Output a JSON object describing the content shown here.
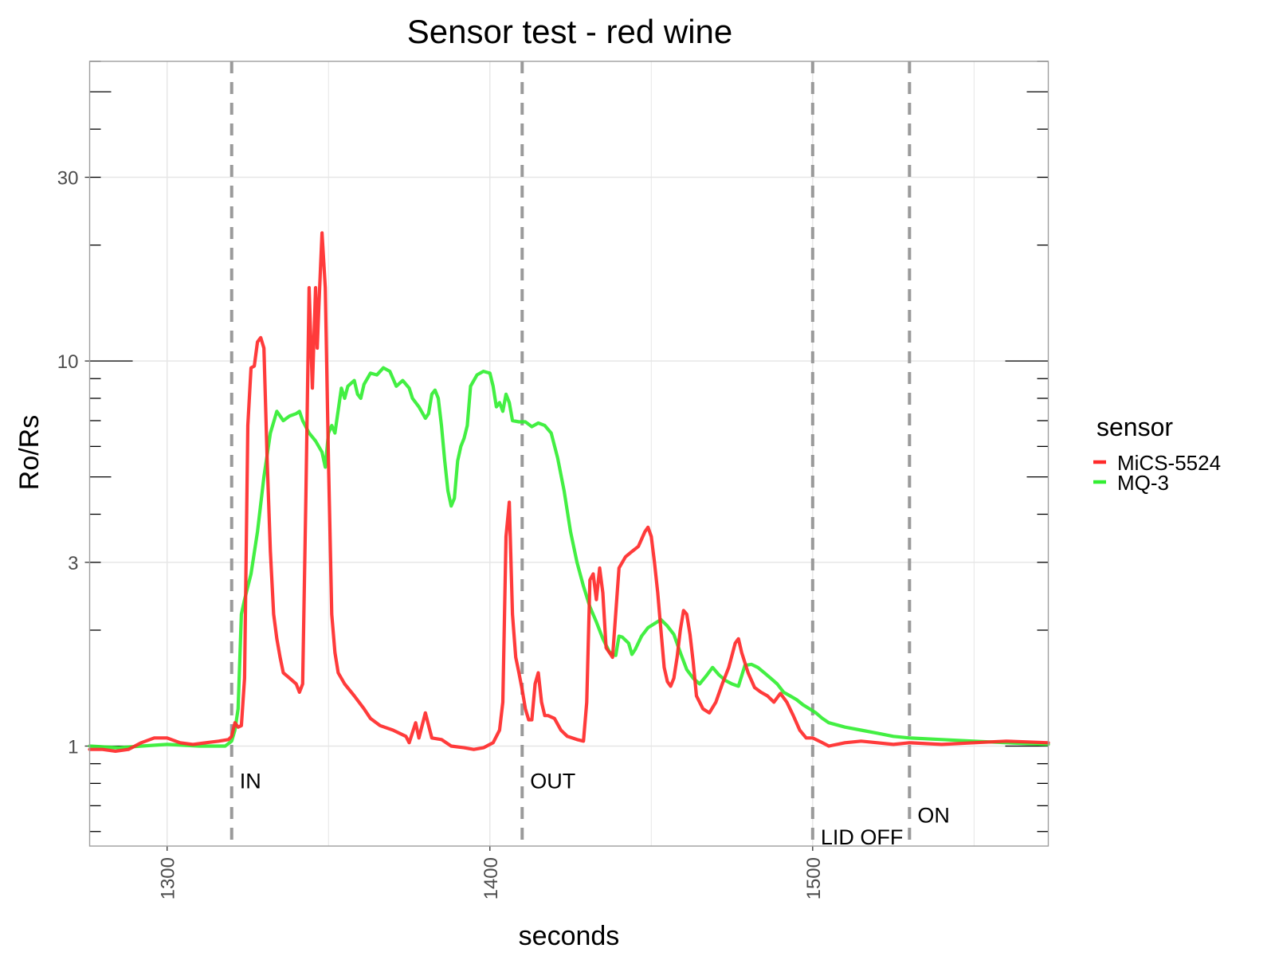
{
  "chart_data": {
    "type": "line",
    "title": "Sensor test - red wine",
    "xlabel": "seconds",
    "ylabel": "Ro/Rs",
    "xlim": [
      1276,
      1573
    ],
    "ylim": [
      0.55,
      60
    ],
    "y_scale": "log10",
    "x_ticks": [
      1300,
      1400,
      1500
    ],
    "x_tick_labels": [
      "1300",
      "1400",
      "1500"
    ],
    "y_ticks": [
      1,
      3,
      10,
      30
    ],
    "y_tick_labels": [
      "1",
      "3",
      "10",
      "30"
    ],
    "grid": true,
    "legend": {
      "title": "sensor",
      "position": "right"
    },
    "vlines": [
      {
        "x": 1320,
        "label": "IN",
        "label_y": 0.81
      },
      {
        "x": 1410,
        "label": "OUT",
        "label_y": 0.81
      },
      {
        "x": 1500,
        "label": "LID OFF",
        "label_y": 0.58
      },
      {
        "x": 1530,
        "label": "ON",
        "label_y": 0.66
      }
    ],
    "series": [
      {
        "name": "MiCS-5524",
        "color": "#ff2a2a",
        "points": [
          [
            1276,
            0.98
          ],
          [
            1280,
            0.98
          ],
          [
            1284,
            0.97
          ],
          [
            1288,
            0.98
          ],
          [
            1292,
            1.02
          ],
          [
            1296,
            1.05
          ],
          [
            1300,
            1.05
          ],
          [
            1304,
            1.02
          ],
          [
            1308,
            1.01
          ],
          [
            1312,
            1.02
          ],
          [
            1316,
            1.03
          ],
          [
            1319,
            1.04
          ],
          [
            1320,
            1.06
          ],
          [
            1321,
            1.15
          ],
          [
            1322,
            1.12
          ],
          [
            1323,
            1.13
          ],
          [
            1324,
            1.5
          ],
          [
            1325,
            6.8
          ],
          [
            1326,
            9.6
          ],
          [
            1327,
            9.7
          ],
          [
            1328,
            11.2
          ],
          [
            1329,
            11.5
          ],
          [
            1330,
            10.8
          ],
          [
            1331,
            5.5
          ],
          [
            1332,
            3.2
          ],
          [
            1333,
            2.2
          ],
          [
            1334,
            1.9
          ],
          [
            1335,
            1.7
          ],
          [
            1336,
            1.55
          ],
          [
            1338,
            1.5
          ],
          [
            1340,
            1.45
          ],
          [
            1341,
            1.38
          ],
          [
            1342,
            1.45
          ],
          [
            1343,
            4.5
          ],
          [
            1344,
            15.5
          ],
          [
            1345,
            8.5
          ],
          [
            1346,
            15.5
          ],
          [
            1346.5,
            10.8
          ],
          [
            1347,
            13.8
          ],
          [
            1348,
            21.5
          ],
          [
            1349,
            15.5
          ],
          [
            1350,
            5.5
          ],
          [
            1351,
            2.2
          ],
          [
            1352,
            1.75
          ],
          [
            1353,
            1.55
          ],
          [
            1355,
            1.45
          ],
          [
            1358,
            1.35
          ],
          [
            1361,
            1.25
          ],
          [
            1363,
            1.18
          ],
          [
            1366,
            1.13
          ],
          [
            1370,
            1.1
          ],
          [
            1374,
            1.06
          ],
          [
            1375,
            1.02
          ],
          [
            1377,
            1.15
          ],
          [
            1378,
            1.05
          ],
          [
            1380,
            1.22
          ],
          [
            1382,
            1.05
          ],
          [
            1385,
            1.04
          ],
          [
            1388,
            1.0
          ],
          [
            1392,
            0.99
          ],
          [
            1395,
            0.98
          ],
          [
            1398,
            0.99
          ],
          [
            1401,
            1.02
          ],
          [
            1403,
            1.1
          ],
          [
            1404,
            1.3
          ],
          [
            1405,
            3.5
          ],
          [
            1406,
            4.3
          ],
          [
            1407,
            2.2
          ],
          [
            1408,
            1.7
          ],
          [
            1409,
            1.55
          ],
          [
            1410,
            1.4
          ],
          [
            1411,
            1.25
          ],
          [
            1412,
            1.17
          ],
          [
            1413,
            1.17
          ],
          [
            1414,
            1.45
          ],
          [
            1415,
            1.55
          ],
          [
            1416,
            1.3
          ],
          [
            1417,
            1.2
          ],
          [
            1418,
            1.2
          ],
          [
            1420,
            1.18
          ],
          [
            1422,
            1.1
          ],
          [
            1424,
            1.06
          ],
          [
            1427,
            1.04
          ],
          [
            1429,
            1.03
          ],
          [
            1430,
            1.3
          ],
          [
            1431,
            2.7
          ],
          [
            1432,
            2.8
          ],
          [
            1433,
            2.4
          ],
          [
            1434,
            2.9
          ],
          [
            1435,
            2.5
          ],
          [
            1436,
            1.8
          ],
          [
            1437,
            1.75
          ],
          [
            1438,
            1.7
          ],
          [
            1440,
            2.9
          ],
          [
            1442,
            3.1
          ],
          [
            1444,
            3.2
          ],
          [
            1446,
            3.3
          ],
          [
            1448,
            3.6
          ],
          [
            1449,
            3.7
          ],
          [
            1450,
            3.5
          ],
          [
            1451,
            3.0
          ],
          [
            1452,
            2.5
          ],
          [
            1453,
            2.0
          ],
          [
            1454,
            1.6
          ],
          [
            1455,
            1.47
          ],
          [
            1456,
            1.43
          ],
          [
            1457,
            1.5
          ],
          [
            1458,
            1.7
          ],
          [
            1459,
            2.0
          ],
          [
            1460,
            2.25
          ],
          [
            1461,
            2.2
          ],
          [
            1462,
            1.95
          ],
          [
            1463,
            1.65
          ],
          [
            1464,
            1.35
          ],
          [
            1466,
            1.25
          ],
          [
            1468,
            1.22
          ],
          [
            1470,
            1.3
          ],
          [
            1472,
            1.45
          ],
          [
            1474,
            1.6
          ],
          [
            1476,
            1.85
          ],
          [
            1477,
            1.9
          ],
          [
            1478,
            1.75
          ],
          [
            1480,
            1.55
          ],
          [
            1482,
            1.42
          ],
          [
            1484,
            1.38
          ],
          [
            1486,
            1.35
          ],
          [
            1488,
            1.3
          ],
          [
            1490,
            1.37
          ],
          [
            1492,
            1.3
          ],
          [
            1494,
            1.2
          ],
          [
            1496,
            1.1
          ],
          [
            1498,
            1.05
          ],
          [
            1500,
            1.05
          ],
          [
            1503,
            1.02
          ],
          [
            1505,
            1.0
          ],
          [
            1510,
            1.02
          ],
          [
            1515,
            1.03
          ],
          [
            1520,
            1.02
          ],
          [
            1525,
            1.01
          ],
          [
            1530,
            1.02
          ],
          [
            1540,
            1.01
          ],
          [
            1550,
            1.02
          ],
          [
            1560,
            1.03
          ],
          [
            1573,
            1.02
          ]
        ]
      },
      {
        "name": "MQ-3",
        "color": "#33ee33",
        "points": [
          [
            1276,
            1.0
          ],
          [
            1285,
            0.99
          ],
          [
            1292,
            1.0
          ],
          [
            1300,
            1.01
          ],
          [
            1310,
            1.0
          ],
          [
            1318,
            1.0
          ],
          [
            1320,
            1.03
          ],
          [
            1321,
            1.1
          ],
          [
            1322,
            1.25
          ],
          [
            1323,
            2.2
          ],
          [
            1324,
            2.4
          ],
          [
            1326,
            2.8
          ],
          [
            1328,
            3.6
          ],
          [
            1330,
            5.0
          ],
          [
            1332,
            6.5
          ],
          [
            1334,
            7.4
          ],
          [
            1336,
            7.0
          ],
          [
            1338,
            7.2
          ],
          [
            1340,
            7.3
          ],
          [
            1341,
            7.4
          ],
          [
            1342,
            7.0
          ],
          [
            1344,
            6.5
          ],
          [
            1346,
            6.2
          ],
          [
            1348,
            5.8
          ],
          [
            1349,
            5.3
          ],
          [
            1350,
            6.5
          ],
          [
            1351,
            6.8
          ],
          [
            1352,
            6.5
          ],
          [
            1354,
            8.5
          ],
          [
            1355,
            8.0
          ],
          [
            1356,
            8.6
          ],
          [
            1358,
            8.9
          ],
          [
            1359,
            8.2
          ],
          [
            1360,
            8.0
          ],
          [
            1361,
            8.7
          ],
          [
            1363,
            9.3
          ],
          [
            1365,
            9.2
          ],
          [
            1367,
            9.6
          ],
          [
            1369,
            9.4
          ],
          [
            1370,
            9.0
          ],
          [
            1371,
            8.6
          ],
          [
            1373,
            8.9
          ],
          [
            1375,
            8.5
          ],
          [
            1376,
            8.0
          ],
          [
            1378,
            7.6
          ],
          [
            1380,
            7.1
          ],
          [
            1381,
            7.3
          ],
          [
            1382,
            8.2
          ],
          [
            1383,
            8.4
          ],
          [
            1384,
            8.0
          ],
          [
            1385,
            6.8
          ],
          [
            1386,
            5.5
          ],
          [
            1387,
            4.6
          ],
          [
            1388,
            4.2
          ],
          [
            1389,
            4.4
          ],
          [
            1390,
            5.5
          ],
          [
            1391,
            6.0
          ],
          [
            1392,
            6.3
          ],
          [
            1393,
            6.8
          ],
          [
            1394,
            8.6
          ],
          [
            1396,
            9.2
          ],
          [
            1398,
            9.4
          ],
          [
            1400,
            9.3
          ],
          [
            1401,
            8.6
          ],
          [
            1402,
            7.6
          ],
          [
            1403,
            7.8
          ],
          [
            1404,
            7.4
          ],
          [
            1405,
            8.2
          ],
          [
            1406,
            7.8
          ],
          [
            1407,
            7.0
          ],
          [
            1409,
            6.95
          ],
          [
            1411,
            6.95
          ],
          [
            1413,
            6.75
          ],
          [
            1415,
            6.9
          ],
          [
            1417,
            6.8
          ],
          [
            1419,
            6.5
          ],
          [
            1421,
            5.6
          ],
          [
            1423,
            4.6
          ],
          [
            1425,
            3.6
          ],
          [
            1427,
            3.0
          ],
          [
            1429,
            2.6
          ],
          [
            1431,
            2.3
          ],
          [
            1433,
            2.1
          ],
          [
            1435,
            1.9
          ],
          [
            1437,
            1.76
          ],
          [
            1438,
            1.73
          ],
          [
            1439,
            1.72
          ],
          [
            1440,
            1.93
          ],
          [
            1441,
            1.92
          ],
          [
            1443,
            1.85
          ],
          [
            1444,
            1.73
          ],
          [
            1445,
            1.78
          ],
          [
            1447,
            1.93
          ],
          [
            1449,
            2.03
          ],
          [
            1451,
            2.08
          ],
          [
            1453,
            2.13
          ],
          [
            1455,
            2.05
          ],
          [
            1457,
            1.95
          ],
          [
            1459,
            1.75
          ],
          [
            1461,
            1.58
          ],
          [
            1463,
            1.5
          ],
          [
            1465,
            1.45
          ],
          [
            1467,
            1.52
          ],
          [
            1469,
            1.6
          ],
          [
            1471,
            1.53
          ],
          [
            1473,
            1.48
          ],
          [
            1475,
            1.45
          ],
          [
            1477,
            1.43
          ],
          [
            1479,
            1.62
          ],
          [
            1481,
            1.63
          ],
          [
            1483,
            1.6
          ],
          [
            1485,
            1.55
          ],
          [
            1487,
            1.5
          ],
          [
            1489,
            1.45
          ],
          [
            1491,
            1.38
          ],
          [
            1493,
            1.35
          ],
          [
            1495,
            1.32
          ],
          [
            1497,
            1.28
          ],
          [
            1499,
            1.25
          ],
          [
            1501,
            1.22
          ],
          [
            1503,
            1.18
          ],
          [
            1505,
            1.15
          ],
          [
            1510,
            1.12
          ],
          [
            1515,
            1.1
          ],
          [
            1520,
            1.08
          ],
          [
            1525,
            1.06
          ],
          [
            1530,
            1.05
          ],
          [
            1540,
            1.04
          ],
          [
            1550,
            1.03
          ],
          [
            1560,
            1.02
          ],
          [
            1573,
            1.01
          ]
        ]
      }
    ]
  }
}
